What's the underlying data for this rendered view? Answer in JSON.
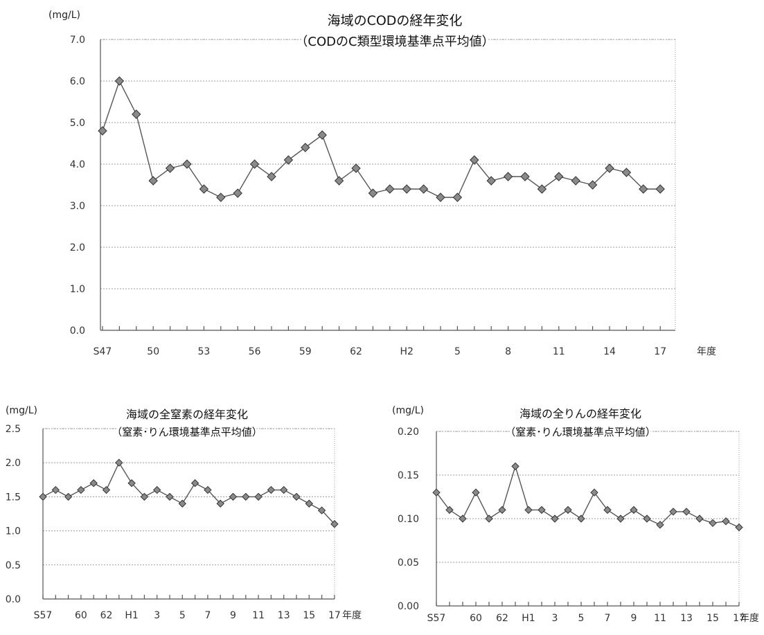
{
  "chart_data": [
    {
      "type": "line",
      "title": "海域のCODの経年変化",
      "subtitle": "（CODのC類型環境基準点平均値）",
      "unit": "(mg/L)",
      "xlabel": "年度",
      "ylim": [
        0,
        7
      ],
      "yticks": [
        "0.0",
        "1.0",
        "2.0",
        "3.0",
        "4.0",
        "5.0",
        "6.0",
        "7.0"
      ],
      "xtick_labels": [
        "S47",
        "50",
        "53",
        "56",
        "59",
        "62",
        "H2",
        "5",
        "8",
        "11",
        "14",
        "17"
      ],
      "categories": [
        "S47",
        "S48",
        "S49",
        "S50",
        "S51",
        "S52",
        "S53",
        "S54",
        "S55",
        "S56",
        "S57",
        "S58",
        "S59",
        "S60",
        "S61",
        "S62",
        "S63",
        "H1",
        "H2",
        "H3",
        "H4",
        "H5",
        "H6",
        "H7",
        "H8",
        "H9",
        "H10",
        "H11",
        "H12",
        "H13",
        "H14",
        "H15",
        "H16",
        "H17"
      ],
      "values": [
        4.8,
        6.0,
        5.2,
        3.6,
        3.9,
        4.0,
        3.4,
        3.2,
        3.3,
        4.0,
        3.7,
        4.1,
        4.4,
        4.7,
        3.6,
        3.9,
        3.3,
        3.4,
        3.4,
        3.4,
        3.2,
        3.2,
        4.1,
        3.6,
        3.7,
        3.7,
        3.4,
        3.7,
        3.6,
        3.5,
        3.9,
        3.8,
        3.4,
        3.4
      ],
      "grid": true
    },
    {
      "type": "line",
      "title": "海域の全窒素の経年変化",
      "subtitle": "（窒素･りん環境基準点平均値）",
      "unit": "(mg/L)",
      "xlabel": "年度",
      "ylim": [
        0,
        2.5
      ],
      "yticks": [
        "0.0",
        "0.5",
        "1.0",
        "1.5",
        "2.0",
        "2.5"
      ],
      "xtick_labels": [
        "S57",
        "60",
        "62",
        "H1",
        "3",
        "5",
        "7",
        "9",
        "11",
        "13",
        "15",
        "17"
      ],
      "categories": [
        "S57",
        "S58",
        "S59",
        "S60",
        "S61",
        "S62",
        "S63",
        "H1",
        "H2",
        "H3",
        "H4",
        "H5",
        "H6",
        "H7",
        "H8",
        "H9",
        "H10",
        "H11",
        "H12",
        "H13",
        "H14",
        "H15",
        "H16",
        "H17"
      ],
      "values": [
        1.5,
        1.6,
        1.5,
        1.6,
        1.7,
        1.6,
        2.0,
        1.7,
        1.5,
        1.6,
        1.5,
        1.4,
        1.7,
        1.6,
        1.4,
        1.5,
        1.5,
        1.5,
        1.6,
        1.6,
        1.5,
        1.4,
        1.3,
        1.1
      ],
      "grid": true
    },
    {
      "type": "line",
      "title": "海域の全りんの経年変化",
      "subtitle": "（窒素･りん環境基準点平均値）",
      "unit": "(mg/L)",
      "xlabel": "年度",
      "ylim": [
        0,
        0.2
      ],
      "yticks": [
        "0.00",
        "0.05",
        "0.10",
        "0.15",
        "0.20"
      ],
      "xtick_labels": [
        "S57",
        "60",
        "62",
        "H1",
        "3",
        "5",
        "7",
        "9",
        "11",
        "13",
        "15",
        "17"
      ],
      "categories": [
        "S57",
        "S58",
        "S59",
        "S60",
        "S61",
        "S62",
        "S63",
        "H1",
        "H2",
        "H3",
        "H4",
        "H5",
        "H6",
        "H7",
        "H8",
        "H9",
        "H10",
        "H11",
        "H12",
        "H13",
        "H14",
        "H15",
        "H16",
        "H17"
      ],
      "values": [
        0.13,
        0.11,
        0.1,
        0.13,
        0.1,
        0.11,
        0.16,
        0.11,
        0.11,
        0.1,
        0.11,
        0.1,
        0.13,
        0.11,
        0.1,
        0.11,
        0.1,
        0.093,
        0.108,
        0.108,
        0.1,
        0.095,
        0.097,
        0.09
      ],
      "grid": true
    }
  ]
}
